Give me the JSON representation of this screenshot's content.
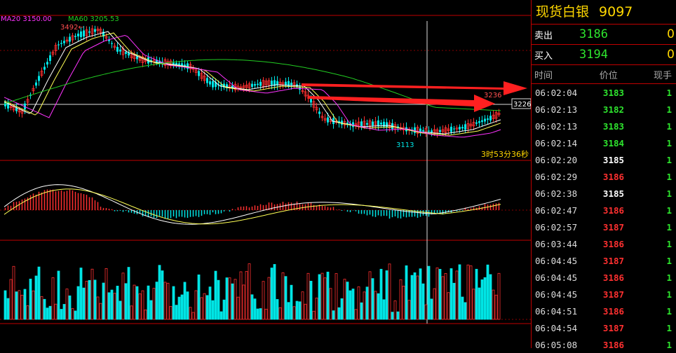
{
  "chart": {
    "ma20_label": "MA20 3150.00",
    "ma60_label": "MA60 3205.53",
    "high_label": "3492←",
    "low_label": "3113",
    "peak_label": "3236",
    "price_tag": "3226",
    "countdown": "3时53分36秒",
    "colors": {
      "up": "#ff3030",
      "down": "#00e5e5",
      "ma20": "#ff33ff",
      "ma60": "#22cc22",
      "grid": "#c00000"
    }
  },
  "panel": {
    "title": "现货白银",
    "code": "9097",
    "sell": {
      "label": "卖出",
      "price": "3186",
      "count": "0"
    },
    "buy": {
      "label": "买入",
      "price": "3194",
      "count": "0"
    },
    "headers": {
      "time": "时间",
      "price": "价位",
      "volume": "现手"
    },
    "trades": [
      {
        "time": "06:02:04",
        "price": "3183",
        "vol": "1",
        "color": "#2ee52e"
      },
      {
        "time": "06:02:13",
        "price": "3182",
        "vol": "1",
        "color": "#2ee52e"
      },
      {
        "time": "06:02:13",
        "price": "3183",
        "vol": "1",
        "color": "#2ee52e"
      },
      {
        "time": "06:02:14",
        "price": "3184",
        "vol": "1",
        "color": "#2ee52e"
      },
      {
        "time": "06:02:20",
        "price": "3185",
        "vol": "1",
        "color": "#ffffff"
      },
      {
        "time": "06:02:29",
        "price": "3186",
        "vol": "1",
        "color": "#ff3030"
      },
      {
        "time": "06:02:38",
        "price": "3185",
        "vol": "1",
        "color": "#ffffff"
      },
      {
        "time": "06:02:47",
        "price": "3186",
        "vol": "1",
        "color": "#ff3030"
      },
      {
        "time": "06:02:57",
        "price": "3187",
        "vol": "1",
        "color": "#ff3030"
      },
      {
        "time": "06:03:44",
        "price": "3186",
        "vol": "1",
        "color": "#ff3030"
      },
      {
        "time": "06:04:45",
        "price": "3187",
        "vol": "1",
        "color": "#ff3030"
      },
      {
        "time": "06:04:45",
        "price": "3186",
        "vol": "1",
        "color": "#ff3030"
      },
      {
        "time": "06:04:45",
        "price": "3187",
        "vol": "1",
        "color": "#ff3030"
      },
      {
        "time": "06:04:51",
        "price": "3186",
        "vol": "1",
        "color": "#ff3030"
      },
      {
        "time": "06:04:54",
        "price": "3187",
        "vol": "1",
        "color": "#ff3030"
      },
      {
        "time": "06:05:08",
        "price": "3186",
        "vol": "1",
        "color": "#ff3030"
      }
    ]
  }
}
